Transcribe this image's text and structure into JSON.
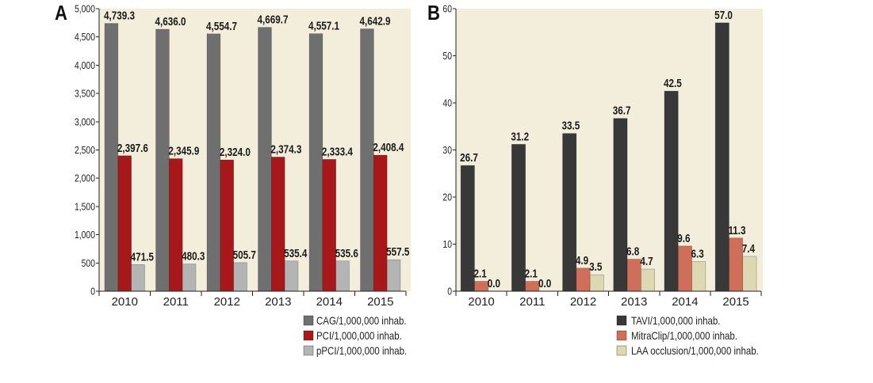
{
  "chart_data": [
    {
      "panel_label": "A",
      "type": "bar",
      "categories": [
        "2010",
        "2011",
        "2012",
        "2013",
        "2014",
        "2015"
      ],
      "ylim": [
        0,
        5000
      ],
      "yticks": [
        {
          "value": 0,
          "label": "0"
        },
        {
          "value": 500,
          "label": "500"
        },
        {
          "value": 1000,
          "label": "1,000"
        },
        {
          "value": 1500,
          "label": "1,500"
        },
        {
          "value": 2000,
          "label": "2,000"
        },
        {
          "value": 2500,
          "label": "2,500"
        },
        {
          "value": 3000,
          "label": "3,000"
        },
        {
          "value": 3500,
          "label": "3,500"
        },
        {
          "value": 4000,
          "label": "4,000"
        },
        {
          "value": 4500,
          "label": "4,500"
        },
        {
          "value": 5000,
          "label": "5,000"
        }
      ],
      "grid": false,
      "legend_position": "bottom-right",
      "plot_background": "#f3eedb",
      "series": [
        {
          "name": "CAG/1,000,000 inhab.",
          "color": "#6f6f6f",
          "values": [
            4739.3,
            4636.0,
            4554.7,
            4669.7,
            4557.1,
            4642.9
          ],
          "labels": [
            "4,739.3",
            "4,636.0",
            "4,554.7",
            "4,669.7",
            "4,557.1",
            "4,642.9"
          ]
        },
        {
          "name": "PCI/1,000,000 inhab.",
          "color": "#a8181b",
          "values": [
            2397.6,
            2345.9,
            2324.0,
            2374.3,
            2333.4,
            2408.4
          ],
          "labels": [
            "2,397.6",
            "2,345.9",
            "2,324.0",
            "2,374.3",
            "2,333.4",
            "2,408.4"
          ]
        },
        {
          "name": "pPCI/1,000,000 inhab.",
          "color": "#b4b4b4",
          "values": [
            471.5,
            480.3,
            505.7,
            535.4,
            535.6,
            557.5
          ],
          "labels": [
            "471.5",
            "480.3",
            "505.7",
            "535.4",
            "535.6",
            "557.5"
          ]
        }
      ]
    },
    {
      "panel_label": "B",
      "type": "bar",
      "categories": [
        "2010",
        "2011",
        "2012",
        "2013",
        "2014",
        "2015"
      ],
      "ylim": [
        0,
        60
      ],
      "yticks": [
        {
          "value": 0,
          "label": "0"
        },
        {
          "value": 10,
          "label": "10"
        },
        {
          "value": 20,
          "label": "20"
        },
        {
          "value": 30,
          "label": "30"
        },
        {
          "value": 40,
          "label": "40"
        },
        {
          "value": 50,
          "label": "50"
        },
        {
          "value": 60,
          "label": "60"
        }
      ],
      "grid": false,
      "legend_position": "bottom-right",
      "plot_background": "#f3eedb",
      "series": [
        {
          "name": "TAVI/1,000,000 inhab.",
          "color": "#383838",
          "values": [
            26.7,
            31.2,
            33.5,
            36.7,
            42.5,
            57.0
          ],
          "labels": [
            "26.7",
            "31.2",
            "33.5",
            "36.7",
            "42.5",
            "57.0"
          ]
        },
        {
          "name": "MitraClip/1,000,000 inhab.",
          "color": "#cf6f5a",
          "values": [
            2.1,
            2.1,
            4.9,
            6.8,
            9.6,
            11.3
          ],
          "labels": [
            "2.1",
            "2.1",
            "4.9",
            "6.8",
            "9.6",
            "11.3"
          ]
        },
        {
          "name": "LAA occlusion/1,000,000 inhab.",
          "color": "#ddd8b2",
          "values": [
            0.0,
            0.0,
            3.5,
            4.7,
            6.3,
            7.4
          ],
          "labels": [
            "0.0",
            "0.0",
            "3.5",
            "4.7",
            "6.3",
            "7.4"
          ]
        }
      ]
    }
  ]
}
